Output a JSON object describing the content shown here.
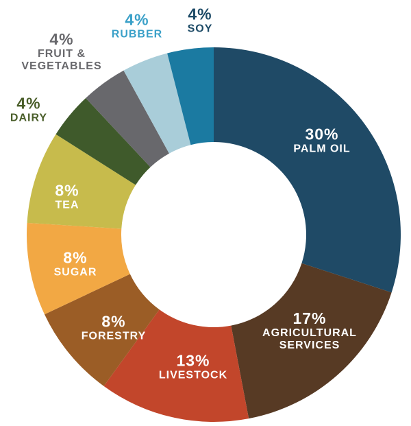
{
  "chart_data": {
    "type": "donut",
    "categories": [
      "PALM OIL",
      "AGRICULTURAL SERVICES",
      "LIVESTOCK",
      "FORESTRY",
      "SUGAR",
      "TEA",
      "DAIRY",
      "FRUIT & VEGETABLES",
      "RUBBER",
      "SOY"
    ],
    "values": [
      30,
      17,
      13,
      8,
      8,
      8,
      4,
      4,
      4,
      4
    ],
    "value_labels": [
      "30%",
      "17%",
      "13%",
      "8%",
      "8%",
      "8%",
      "4%",
      "4%",
      "4%",
      "4%"
    ],
    "colors": [
      "#1f4a66",
      "#573a24",
      "#c2462b",
      "#9b5d26",
      "#f2a844",
      "#c7bb4c",
      "#3f5a2b",
      "#68686c",
      "#a9cdd9",
      "#1b7aa1"
    ]
  }
}
